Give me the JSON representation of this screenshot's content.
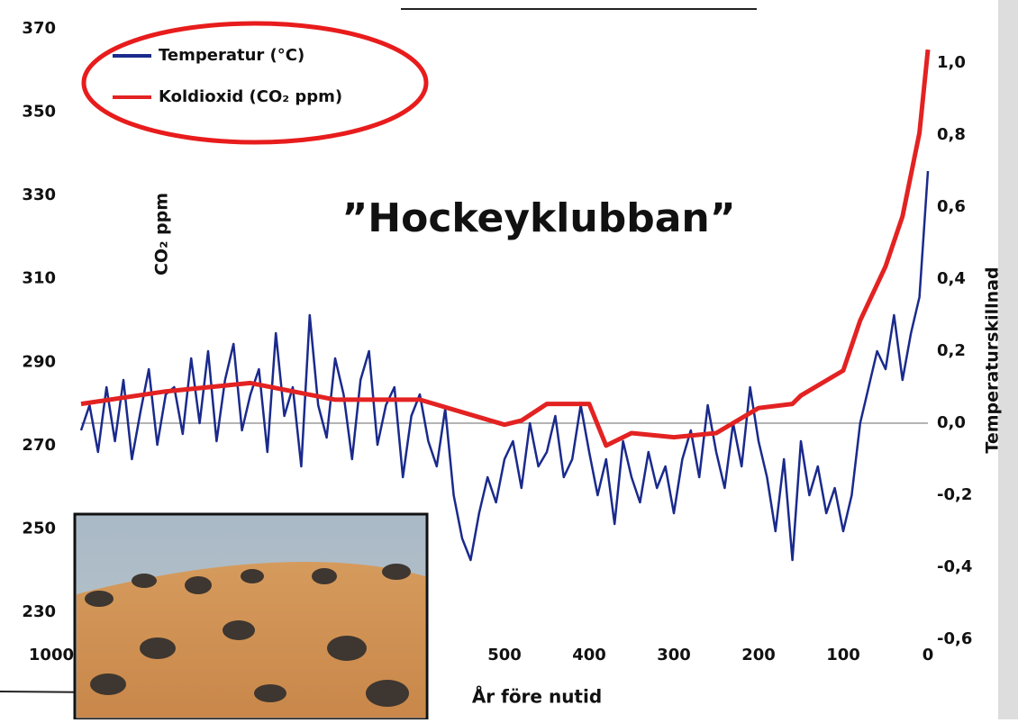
{
  "chart_data": {
    "type": "line",
    "title": "”Hockeyklubban”",
    "x_label": "År före nutid",
    "y_label": "CO₂ ppm",
    "y2_label": "Temperaturskillnad",
    "xlim": [
      1000,
      0
    ],
    "xticks": [
      1000,
      500,
      400,
      300,
      200,
      100,
      0
    ],
    "ylim": [
      230,
      370
    ],
    "yticks": [
      230,
      250,
      270,
      290,
      310,
      330,
      350,
      370
    ],
    "y2lim": [
      -0.6,
      1.0
    ],
    "y2ticks": [
      {
        "value": -0.6,
        "label": "-0,6"
      },
      {
        "value": -0.4,
        "label": "-0,4"
      },
      {
        "value": -0.2,
        "label": "-0,2"
      },
      {
        "value": 0,
        "label": "0,0"
      },
      {
        "value": 0.2,
        "label": "0,2"
      },
      {
        "value": 0.4,
        "label": "0,4"
      },
      {
        "value": 0.6,
        "label": "0,6"
      },
      {
        "value": 0.8,
        "label": "0,8"
      },
      {
        "value": 1.0,
        "label": "1,0"
      }
    ],
    "series": [
      {
        "name": "Temperatur (°C)",
        "color": "#1a2a8c",
        "axis": "y2",
        "x": [
          1000,
          990,
          980,
          970,
          960,
          950,
          940,
          930,
          920,
          910,
          900,
          890,
          880,
          870,
          860,
          850,
          840,
          830,
          820,
          810,
          800,
          790,
          780,
          770,
          760,
          750,
          740,
          730,
          720,
          710,
          700,
          690,
          680,
          670,
          660,
          650,
          640,
          630,
          620,
          610,
          600,
          590,
          580,
          570,
          560,
          550,
          540,
          530,
          520,
          510,
          500,
          490,
          480,
          470,
          460,
          450,
          440,
          430,
          420,
          410,
          400,
          390,
          380,
          370,
          360,
          350,
          340,
          330,
          320,
          310,
          300,
          290,
          280,
          270,
          260,
          250,
          240,
          230,
          220,
          210,
          200,
          190,
          180,
          170,
          160,
          150,
          140,
          130,
          120,
          110,
          100,
          90,
          80,
          70,
          60,
          50,
          40,
          30,
          20,
          10,
          0
        ],
        "values": [
          -0.02,
          0.05,
          -0.08,
          0.1,
          -0.05,
          0.12,
          -0.1,
          0.03,
          0.15,
          -0.06,
          0.08,
          0.1,
          -0.03,
          0.18,
          0.0,
          0.2,
          -0.05,
          0.12,
          0.22,
          -0.02,
          0.08,
          0.15,
          -0.08,
          0.25,
          0.02,
          0.1,
          -0.12,
          0.3,
          0.05,
          -0.04,
          0.18,
          0.08,
          -0.1,
          0.12,
          0.2,
          -0.06,
          0.05,
          0.1,
          -0.15,
          0.02,
          0.08,
          -0.05,
          -0.12,
          0.04,
          -0.2,
          -0.32,
          -0.38,
          -0.25,
          -0.15,
          -0.22,
          -0.1,
          -0.05,
          -0.18,
          0.0,
          -0.12,
          -0.08,
          0.02,
          -0.15,
          -0.1,
          0.05,
          -0.08,
          -0.2,
          -0.1,
          -0.28,
          -0.05,
          -0.15,
          -0.22,
          -0.08,
          -0.18,
          -0.12,
          -0.25,
          -0.1,
          -0.02,
          -0.15,
          0.05,
          -0.08,
          -0.18,
          0.0,
          -0.12,
          0.1,
          -0.05,
          -0.15,
          -0.3,
          -0.1,
          -0.38,
          -0.05,
          -0.2,
          -0.12,
          -0.25,
          -0.18,
          -0.3,
          -0.2,
          0.0,
          0.1,
          0.2,
          0.15,
          0.3,
          0.12,
          0.25,
          0.35,
          0.7
        ]
      },
      {
        "name": "Koldioxid (CO₂ ppm)",
        "color": "#e32222",
        "x": [
          1000,
          900,
          800,
          700,
          600,
          550,
          500,
          480,
          450,
          400,
          380,
          350,
          300,
          250,
          200,
          160,
          150,
          100,
          80,
          50,
          30,
          10,
          0
        ],
        "values": [
          280,
          283,
          285,
          281,
          281,
          278,
          275,
          276,
          280,
          280,
          270,
          273,
          272,
          273,
          279,
          280,
          282,
          288,
          300,
          313,
          325,
          345,
          365
        ]
      }
    ]
  }
}
